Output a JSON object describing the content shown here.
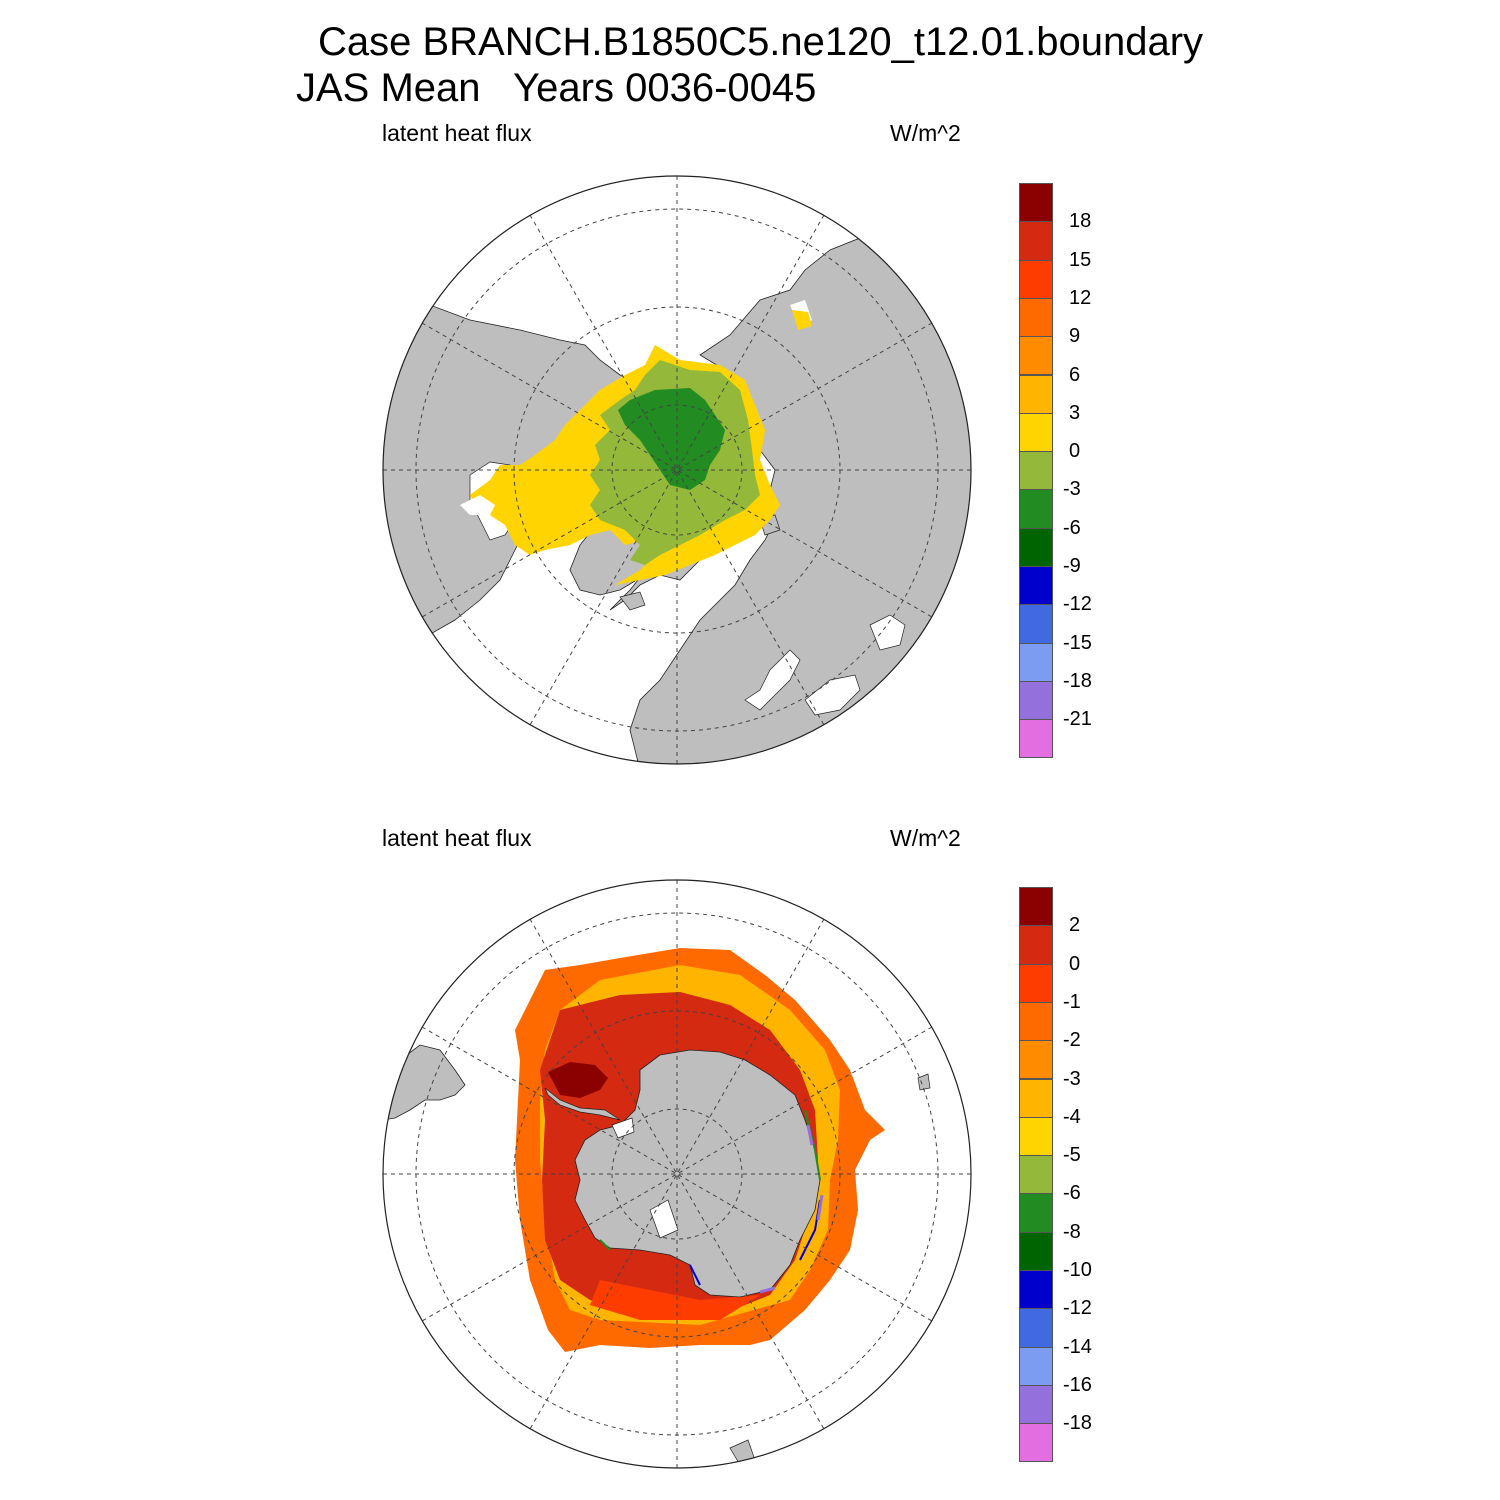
{
  "title": {
    "line1": "Case BRANCH.B1850C5.ne120_t12.01.boundary",
    "line2": "JAS Mean   Years 0036-0045"
  },
  "panels": [
    {
      "id": "arctic",
      "variable_label": "latent heat flux",
      "units_label": "W/m^2",
      "colorbar": {
        "colors": [
          "#8b0000",
          "#d42a12",
          "#ff3c00",
          "#ff6a00",
          "#ff8c00",
          "#ffb400",
          "#ffd400",
          "#94b83a",
          "#228b22",
          "#006400",
          "#0000cd",
          "#4169e1",
          "#7b9cf0",
          "#9370db",
          "#e26ee0"
        ],
        "ticks": [
          "18",
          "15",
          "12",
          "9",
          "6",
          "3",
          "0",
          "-3",
          "-6",
          "-9",
          "-12",
          "-15",
          "-18",
          "-21"
        ]
      }
    },
    {
      "id": "antarctic",
      "variable_label": "latent heat flux",
      "units_label": "W/m^2",
      "colorbar": {
        "colors": [
          "#8b0000",
          "#d42a12",
          "#ff3c00",
          "#ff6a00",
          "#ff8c00",
          "#ffb400",
          "#ffd400",
          "#94b83a",
          "#228b22",
          "#006400",
          "#0000cd",
          "#4169e1",
          "#7b9cf0",
          "#9370db",
          "#e26ee0"
        ],
        "ticks": [
          "2",
          "0",
          "-1",
          "-2",
          "-3",
          "-4",
          "-5",
          "-6",
          "-8",
          "-10",
          "-12",
          "-14",
          "-16",
          "-18"
        ]
      }
    }
  ],
  "colors": {
    "land": "#bebebe",
    "background": "#ffffff"
  }
}
